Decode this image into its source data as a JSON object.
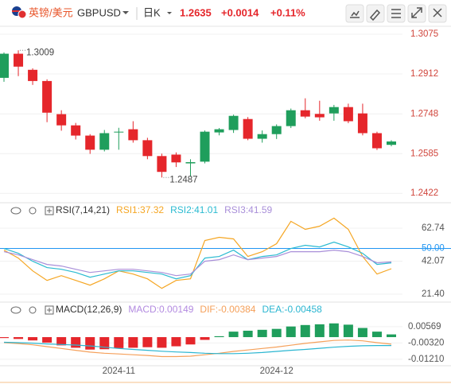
{
  "toolbar": {
    "name": "英镑/美元",
    "symbol": "GBPUSD",
    "period": "日K",
    "price": 1.2635,
    "change": "+0.0014",
    "change_pct": "+0.11%"
  },
  "chart_data": [
    {
      "type": "candlestick",
      "open": [
        1.2896,
        1.2995,
        1.2929,
        1.2883,
        1.2747,
        1.2701,
        1.2659,
        1.2601,
        1.2672,
        1.2685,
        1.264,
        1.2575,
        1.2581,
        1.2545,
        1.2552,
        1.2672,
        1.2682,
        1.2727,
        1.2646,
        1.2665,
        1.2698,
        1.2763,
        1.2748,
        1.275,
        1.2776,
        1.275,
        1.2669,
        1.2621
      ],
      "high": [
        1.3,
        1.3009,
        1.2935,
        1.289,
        1.2763,
        1.2711,
        1.2665,
        1.2682,
        1.2691,
        1.2718,
        1.265,
        1.2585,
        1.259,
        1.2562,
        1.268,
        1.269,
        1.2745,
        1.2735,
        1.268,
        1.2705,
        1.277,
        1.2812,
        1.2802,
        1.2785,
        1.279,
        1.279,
        1.2675,
        1.264
      ],
      "low": [
        1.288,
        1.2903,
        1.2867,
        1.2714,
        1.2679,
        1.2643,
        1.2584,
        1.2594,
        1.2601,
        1.263,
        1.2562,
        1.2487,
        1.253,
        1.249,
        1.2545,
        1.266,
        1.267,
        1.264,
        1.263,
        1.2645,
        1.269,
        1.273,
        1.272,
        1.272,
        1.271,
        1.266,
        1.26,
        1.2615
      ],
      "close": [
        1.2995,
        1.2942,
        1.2883,
        1.2753,
        1.2701,
        1.2659,
        1.2601,
        1.2669,
        1.2675,
        1.264,
        1.2575,
        1.251,
        1.2549,
        1.255,
        1.2675,
        1.2685,
        1.274,
        1.2646,
        1.2665,
        1.2698,
        1.2763,
        1.2737,
        1.2734,
        1.2776,
        1.2718,
        1.2669,
        1.2607,
        1.2635
      ],
      "up_color": "#1f9e5c",
      "down_color": "#e5262b",
      "tick_color": "#d0453c",
      "ylim": [
        1.239,
        1.3098
      ],
      "yticks": [
        1.3075,
        1.2912,
        1.2748,
        1.2585,
        1.2422
      ],
      "annotations": [
        1.3009,
        1.2487
      ],
      "grid": true
    },
    {
      "type": "line",
      "title": "RSI(7,14,21)",
      "tick_color": "#555555",
      "series": [
        {
          "name": "RSI1:37.32",
          "color": "#f5a623",
          "values": [
            49,
            44,
            36,
            30,
            33,
            30,
            27,
            31,
            36,
            34,
            31,
            25,
            30,
            31,
            55,
            57,
            56,
            45,
            48,
            53,
            67,
            62,
            64,
            69,
            62,
            45,
            34,
            37.32
          ]
        },
        {
          "name": "RSI2:41.01",
          "color": "#2bbbd1",
          "values": [
            50,
            47,
            42,
            38,
            37,
            35,
            32,
            34,
            36,
            36,
            35,
            34,
            31,
            33,
            44,
            45,
            49,
            43,
            45,
            46,
            50,
            52,
            51,
            54,
            51,
            47,
            40,
            41.01
          ]
        },
        {
          "name": "RSI3:41.59",
          "color": "#a98fd9",
          "values": [
            48,
            46,
            43,
            40,
            39,
            37,
            35,
            36,
            37,
            37,
            36,
            35,
            33,
            34,
            42,
            43,
            46,
            43,
            44,
            45,
            48,
            48,
            48,
            49,
            48,
            45,
            41,
            41.59
          ]
        }
      ],
      "ylim": [
        17.4,
        71.2
      ],
      "yticks": [
        62.74,
        {
          "value": 50,
          "label": "50.00",
          "color": "#2196f3"
        },
        42.07,
        {
          "value": 21.4,
          "label": "21.40"
        }
      ]
    },
    {
      "type": "macd",
      "title": "MACD(12,26,9)",
      "tick_color": "#555555",
      "categories": [
        null,
        null,
        null,
        null,
        null,
        null,
        null,
        null,
        "2024-11",
        null,
        null,
        null,
        null,
        null,
        null,
        null,
        null,
        null,
        null,
        "2024-12",
        null,
        null,
        null,
        null,
        null,
        null,
        null,
        null
      ],
      "up_color": "#1f9e5c",
      "down_color": "#e5262b",
      "series": [
        {
          "name": "MACD:0.00149",
          "color": "#b38be0",
          "style": "bar",
          "values": [
            -0.0005,
            -0.001,
            -0.0018,
            -0.003,
            -0.0045,
            -0.0058,
            -0.0068,
            -0.0066,
            -0.006,
            -0.0058,
            -0.0055,
            -0.0058,
            -0.005,
            -0.004,
            -0.0015,
            0.0005,
            0.003,
            0.0035,
            0.004,
            0.0045,
            0.0058,
            0.0066,
            0.007,
            0.0075,
            0.0068,
            0.005,
            0.003,
            0.00149
          ]
        },
        {
          "name": "DIF:-0.00384",
          "color": "#f5a05a",
          "style": "line",
          "values": [
            -0.003,
            -0.0035,
            -0.0042,
            -0.0052,
            -0.0062,
            -0.0072,
            -0.0082,
            -0.0088,
            -0.0092,
            -0.0096,
            -0.01,
            -0.0106,
            -0.0106,
            -0.0104,
            -0.0096,
            -0.0088,
            -0.0078,
            -0.007,
            -0.0062,
            -0.0054,
            -0.0044,
            -0.0034,
            -0.0026,
            -0.0018,
            -0.0016,
            -0.002,
            -0.003,
            -0.00384
          ]
        },
        {
          "name": "DEA:-0.00458",
          "color": "#2bb6d1",
          "style": "line",
          "values": [
            -0.0028,
            -0.003,
            -0.0033,
            -0.0037,
            -0.004,
            -0.0043,
            -0.0048,
            -0.0055,
            -0.0062,
            -0.0067,
            -0.0072,
            -0.0077,
            -0.0081,
            -0.0084,
            -0.0088,
            -0.009,
            -0.009,
            -0.0088,
            -0.0084,
            -0.0078,
            -0.0072,
            -0.0067,
            -0.0061,
            -0.0055,
            -0.005,
            -0.0047,
            -0.0046,
            -0.00458
          ]
        }
      ],
      "ylim": [
        -0.0156,
        0.0126
      ],
      "yticks": [
        0.00569,
        {
          "value": -0.0032,
          "label": "-0.00320"
        },
        {
          "value": -0.0121,
          "label": "-0.01210"
        }
      ]
    }
  ]
}
